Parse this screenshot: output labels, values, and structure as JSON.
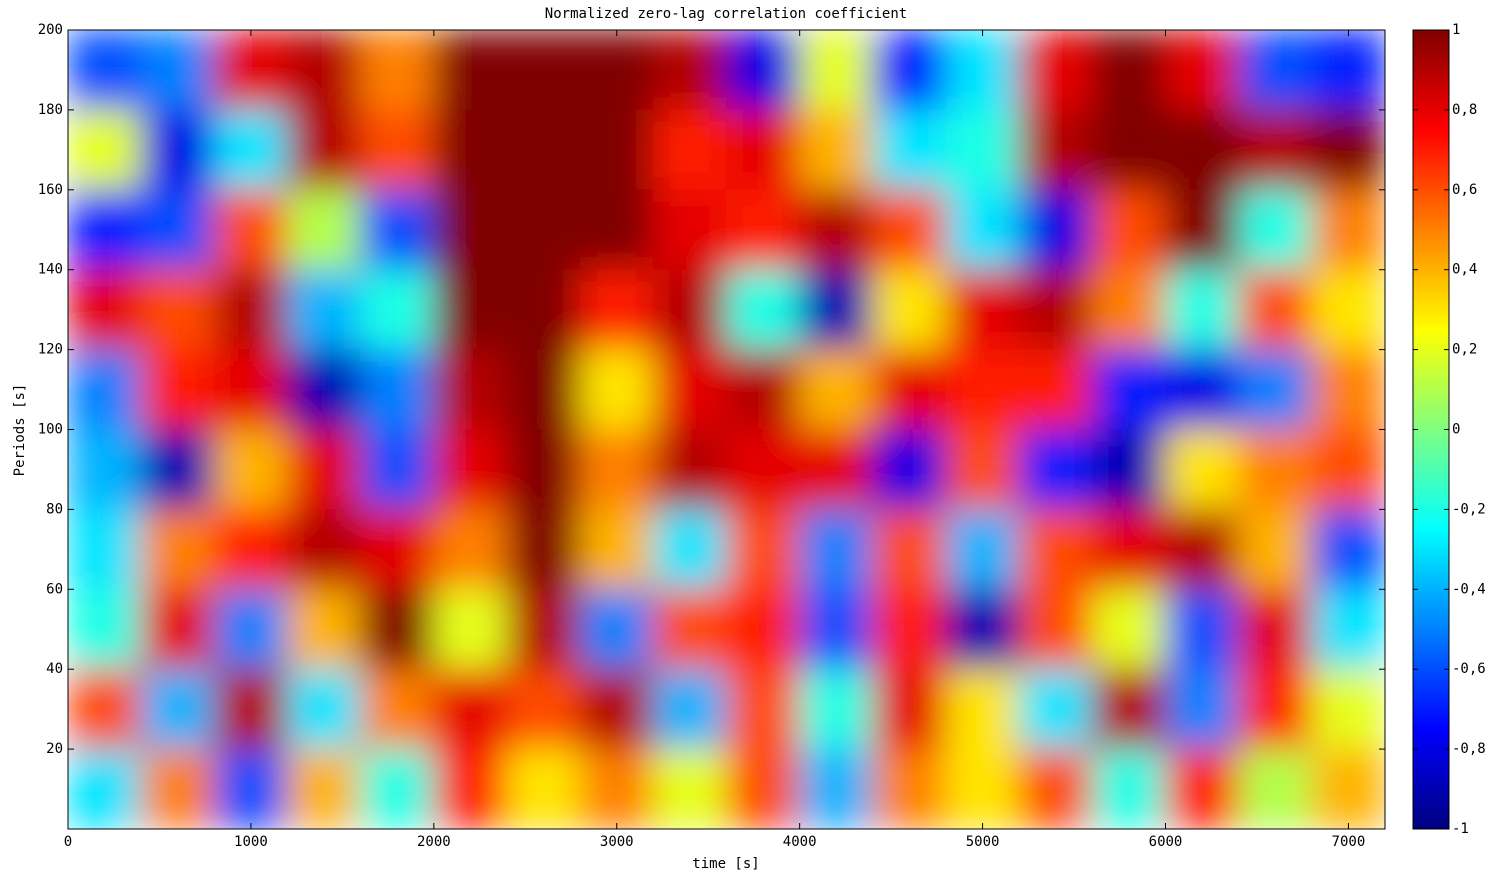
{
  "chart_data": {
    "type": "heatmap",
    "title": "Normalized zero-lag correlation coefficient",
    "xlabel": "time [s]",
    "ylabel": "Periods [s]",
    "colormap": "jet",
    "x": [
      200,
      600,
      1000,
      1400,
      1800,
      2200,
      2600,
      3000,
      3400,
      3800,
      4200,
      4600,
      5000,
      5400,
      5800,
      6200,
      6600,
      7000
    ],
    "y": [
      190,
      170,
      150,
      130,
      110,
      90,
      70,
      50,
      30,
      10
    ],
    "z": [
      [
        -0.6,
        -0.5,
        0.8,
        0.9,
        0.5,
        1,
        1,
        1,
        0.9,
        -0.8,
        0.2,
        -0.7,
        -0.3,
        0.8,
        1,
        0.8,
        -0.6,
        -0.7
      ],
      [
        0.2,
        -0.8,
        -0.3,
        0.9,
        0.6,
        1,
        1,
        1,
        0.7,
        0.8,
        0.4,
        -0.3,
        -0.2,
        0.9,
        1,
        1,
        0.9,
        1
      ],
      [
        -0.7,
        -0.6,
        0.6,
        0.1,
        -0.6,
        1,
        1,
        1,
        0.8,
        0.7,
        0.9,
        0.6,
        -0.3,
        -0.8,
        0.6,
        1,
        -0.2,
        0.5
      ],
      [
        0.8,
        0.6,
        0.9,
        -0.4,
        -0.2,
        1,
        1,
        0.7,
        0.9,
        -0.2,
        -0.9,
        0.3,
        0.8,
        0.9,
        0.5,
        -0.2,
        0.6,
        0.3
      ],
      [
        -0.5,
        0.7,
        0.8,
        -0.9,
        -0.5,
        0.9,
        1,
        0.3,
        0.8,
        0.9,
        0.4,
        0.8,
        0.7,
        0.7,
        -0.7,
        -0.8,
        -0.5,
        0.5
      ],
      [
        -0.4,
        -0.9,
        0.4,
        0.8,
        -0.6,
        0.8,
        1,
        0.5,
        0.9,
        0.8,
        0.8,
        -0.8,
        0.6,
        -0.7,
        -0.9,
        0.3,
        0.5,
        0.6
      ],
      [
        -0.3,
        0.5,
        0.7,
        0.9,
        0.8,
        0.5,
        1,
        0.4,
        -0.3,
        0.6,
        -0.5,
        0.6,
        -0.4,
        0.6,
        0.8,
        0.9,
        0.4,
        -0.6
      ],
      [
        -0.2,
        0.8,
        -0.5,
        0.4,
        1,
        0.2,
        0.9,
        -0.5,
        0.6,
        0.7,
        -0.6,
        0.7,
        -0.9,
        0.6,
        0.2,
        -0.6,
        0.8,
        -0.3
      ],
      [
        0.6,
        -0.4,
        0.9,
        -0.3,
        0.5,
        0.8,
        0.6,
        0.9,
        -0.4,
        0.6,
        -0.2,
        0.8,
        0.3,
        -0.3,
        0.9,
        -0.5,
        0.7,
        0.2
      ],
      [
        -0.3,
        0.5,
        -0.6,
        0.4,
        -0.2,
        0.7,
        0.3,
        0.5,
        0.2,
        0.6,
        -0.4,
        0.5,
        0.3,
        0.6,
        -0.2,
        0.7,
        0.1,
        0.4
      ]
    ],
    "xlim": [
      0,
      7200
    ],
    "ylim": [
      0,
      200
    ],
    "clim": [
      -1,
      1
    ],
    "xticks": [
      0,
      1000,
      2000,
      3000,
      4000,
      5000,
      6000,
      7000
    ],
    "yticks": [
      20,
      40,
      60,
      80,
      100,
      120,
      140,
      160,
      180,
      200
    ],
    "cticks": [
      -1,
      {
        "value": -0.8,
        "label": "-0,8"
      },
      {
        "value": -0.6,
        "label": "-0,6"
      },
      {
        "value": -0.4,
        "label": "-0,4"
      },
      {
        "value": -0.2,
        "label": "-0,2"
      },
      0,
      {
        "value": 0.2,
        "label": "0,2"
      },
      {
        "value": 0.4,
        "label": "0,4"
      },
      {
        "value": 0.6,
        "label": "0,6"
      },
      {
        "value": 0.8,
        "label": "0,8"
      },
      1
    ]
  }
}
